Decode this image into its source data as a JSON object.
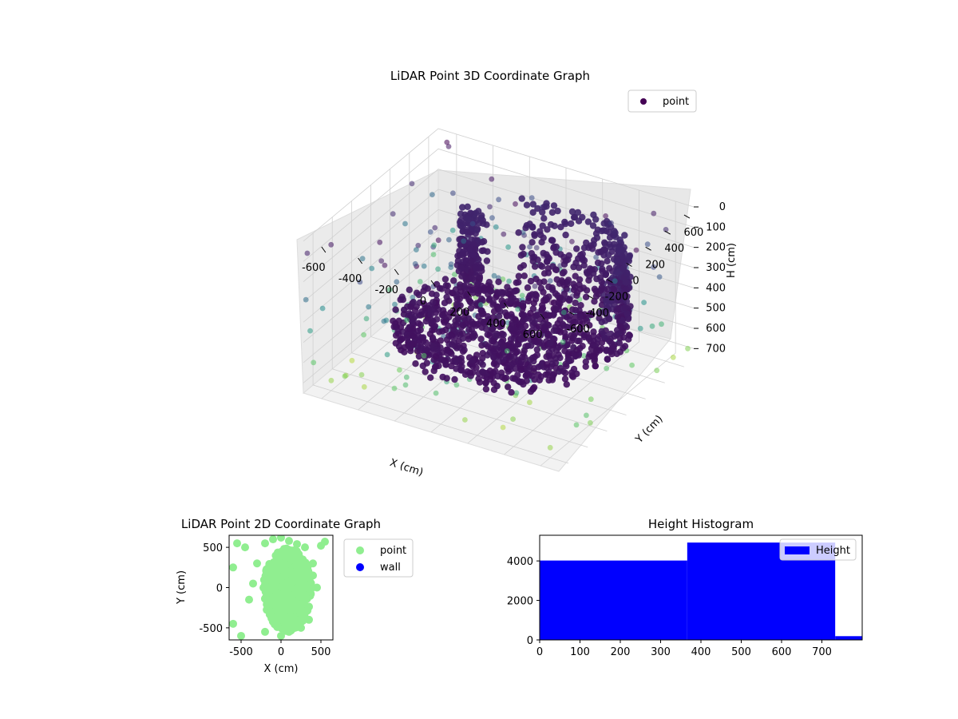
{
  "chart_data": [
    {
      "type": "scatter",
      "projection": "3d",
      "title": "LiDAR Point 3D Coordinate Graph",
      "xlabel": "X (cm)",
      "ylabel": "Y (cm)",
      "zlabel": "H (cm)",
      "xlim": [
        -700,
        700
      ],
      "ylim": [
        -700,
        700
      ],
      "zlim": [
        0,
        750
      ],
      "z_inverted": true,
      "xticks": [
        "-600",
        "-400",
        "-200",
        "0",
        "200",
        "400",
        "600"
      ],
      "yticks": [
        "-600",
        "-400",
        "-200",
        "0",
        "200",
        "400",
        "600"
      ],
      "zticks": [
        "0",
        "100",
        "200",
        "300",
        "400",
        "500",
        "600",
        "700"
      ],
      "grid": true,
      "legend": {
        "location": "upper right",
        "entries": [
          "point"
        ]
      },
      "colormap": "viridis",
      "series": [
        {
          "name": "point",
          "description_points": [
            {
              "x": -150,
              "y": 100,
              "h": 480
            },
            {
              "x": 0,
              "y": 200,
              "h": 500
            },
            {
              "x": 200,
              "y": 300,
              "h": 500
            },
            {
              "x": 400,
              "y": 450,
              "h": 350
            },
            {
              "x": 500,
              "y": 600,
              "h": 200
            },
            {
              "x": 300,
              "y": 600,
              "h": 150
            },
            {
              "x": -350,
              "y": 300,
              "h": 300
            },
            {
              "x": -300,
              "y": 300,
              "h": 200
            },
            {
              "x": -450,
              "y": -100,
              "h": 560
            },
            {
              "x": -250,
              "y": -300,
              "h": 600
            },
            {
              "x": 100,
              "y": -100,
              "h": 560
            },
            {
              "x": 300,
              "y": 100,
              "h": 540
            },
            {
              "x": -600,
              "y": -600,
              "h": 700
            },
            {
              "x": 600,
              "y": 600,
              "h": 100
            },
            {
              "x": -600,
              "y": 600,
              "h": 0
            },
            {
              "x": 600,
              "y": -600,
              "h": 700
            }
          ]
        }
      ]
    },
    {
      "type": "scatter",
      "title": "LiDAR Point 2D Coordinate Graph",
      "xlabel": "X (cm)",
      "ylabel": "Y (cm)",
      "xlim": [
        -650,
        650
      ],
      "ylim": [
        -650,
        650
      ],
      "xticks": [
        "-500",
        "0",
        "500"
      ],
      "yticks": [
        "-500",
        "0",
        "500"
      ],
      "legend": {
        "location": "outside right",
        "entries": [
          "point",
          "wall"
        ]
      },
      "colors": {
        "point": "#90ee90",
        "wall": "#0000ff"
      },
      "series": [
        {
          "name": "point",
          "description": "dense green cloud of floor points",
          "x": [
            -200,
            -100,
            0,
            100,
            200,
            300,
            400,
            450,
            -300,
            -450,
            -550,
            -600,
            550,
            500,
            300,
            -400,
            -350,
            100,
            0,
            -200,
            250,
            350,
            -500,
            -600,
            400,
            -150,
            50,
            200
          ],
          "y": [
            550,
            600,
            620,
            580,
            540,
            500,
            300,
            0,
            300,
            500,
            550,
            250,
            570,
            520,
            -300,
            -150,
            50,
            -550,
            -600,
            -550,
            -500,
            -400,
            -600,
            -450,
            150,
            200,
            0,
            100
          ]
        },
        {
          "name": "wall",
          "x": [],
          "y": []
        }
      ]
    },
    {
      "type": "bar",
      "histogram": true,
      "title": "Height Histogram",
      "xlim": [
        0,
        800
      ],
      "ylim": [
        0,
        5300
      ],
      "xticks": [
        "0",
        "100",
        "200",
        "300",
        "400",
        "500",
        "600",
        "700"
      ],
      "yticks": [
        "0",
        "2000",
        "4000"
      ],
      "legend": {
        "location": "upper right",
        "entries": [
          "Height"
        ]
      },
      "colors": {
        "bar": "#0000ff"
      },
      "bins": [
        {
          "start": 0,
          "end": 366,
          "count": 4020
        },
        {
          "start": 366,
          "end": 733,
          "count": 4930
        },
        {
          "start": 733,
          "end": 800,
          "count": 190
        }
      ]
    }
  ]
}
